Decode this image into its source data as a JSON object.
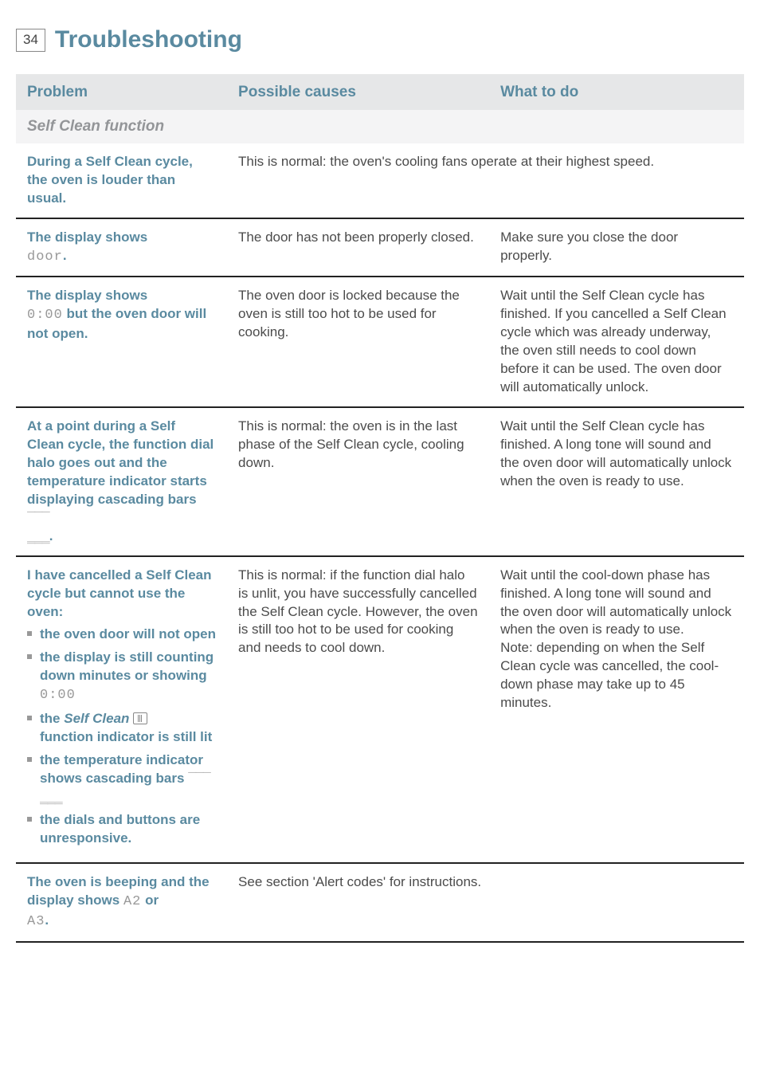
{
  "page": {
    "number": "34",
    "title": "Troubleshooting"
  },
  "headers": {
    "problem": "Problem",
    "causes": "Possible causes",
    "action": "What to do"
  },
  "section": {
    "self_clean": "Self Clean function"
  },
  "rows": {
    "r1": {
      "problem": "During a Self Clean cycle, the oven is louder than usual.",
      "cause": "This is normal: the oven's cooling fans operate at their highest speed."
    },
    "r2": {
      "problem_line1": "The display shows",
      "problem_seg": "door",
      "problem_suffix": ".",
      "cause": "The door has not been properly closed.",
      "action": "Make sure you close the door properly."
    },
    "r3": {
      "problem_line1": "The display shows",
      "problem_seg": "0:00",
      "problem_cont": " but the oven door will not open.",
      "cause": "The oven door is locked because the oven is still too hot to be used for cooking.",
      "action": "Wait until the Self Clean cycle has finished. If you cancelled a Self Clean cycle which was already underway, the oven still needs to cool down before it can be used. The oven door will automatically unlock."
    },
    "r4": {
      "problem_pre": "At a point during a Self Clean cycle, the function dial halo goes out and the temperature indicator starts displaying cascading bars ",
      "bars": "‾ ‾ ‾\n_ _ _",
      "problem_suffix": ".",
      "cause": "This is normal: the oven is in the last phase of the Self Clean cycle, cooling down.",
      "action": "Wait until the Self Clean cycle has finished. A long tone will sound and the oven door will automatically unlock when the oven is ready to use."
    },
    "r5": {
      "problem_intro": "I have cancelled a Self Clean cycle but cannot use the oven:",
      "bul1": "the oven door will not open",
      "bul2_pre": "the display is still counting down minutes or showing",
      "bul2_seg": "0:00",
      "bul3_pre": "the ",
      "bul3_italic": "Self Clean",
      "bul3_post": " function indicator is still lit",
      "bul4_pre": "the temperature indicator shows cascading bars ",
      "bul5": "the dials and buttons are unresponsive.",
      "cause": "This is normal: if the function dial halo is unlit, you have successfully cancelled the Self Clean cycle. However, the oven is still too hot to be used for cooking and needs to cool down.",
      "action": "Wait until the cool-down phase has finished. A long tone will sound and the oven door will automatically unlock when the oven is ready to use.\nNote: depending on when the Self Clean cycle was cancelled, the cool-down phase may take up to 45 minutes."
    },
    "r6": {
      "problem_pre": "The oven is beeping and the display shows ",
      "seg1": "A2",
      "mid": " or ",
      "seg2": "A3",
      "suffix": ".",
      "cause": "See section 'Alert codes' for instructions."
    }
  }
}
